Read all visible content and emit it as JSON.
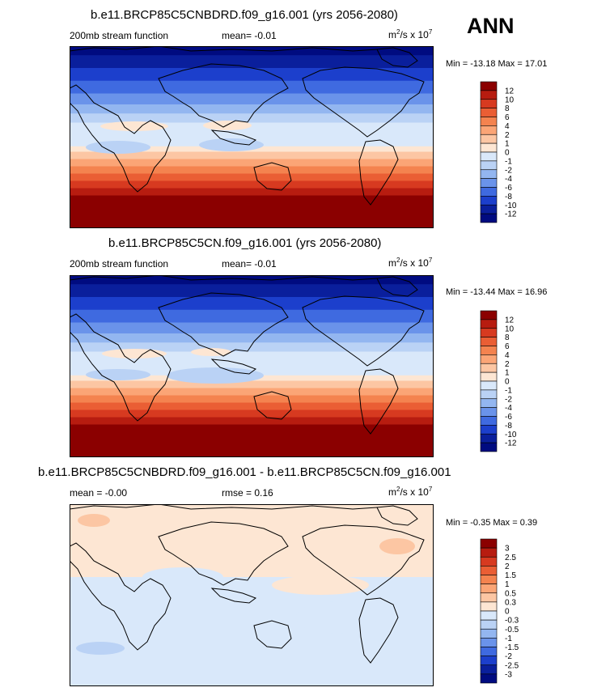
{
  "ann_label": "ANN",
  "panels": [
    {
      "title": "b.e11.BRCP85C5CNBDRD.f09_g16.001 (yrs 2056-2080)",
      "left_label": "200mb stream function",
      "mean_text": "mean=  -0.01",
      "units_base": "m",
      "units_mid": "/s x 10",
      "units_sup1": "2",
      "units_sup2": "7",
      "minmax": "Min = -13.18 Max =  17.01"
    },
    {
      "title": "b.e11.BRCP85C5CN.f09_g16.001 (yrs 2056-2080)",
      "left_label": "200mb stream function",
      "mean_text": "mean=  -0.01",
      "units_base": "m",
      "units_mid": "/s x 10",
      "units_sup1": "2",
      "units_sup2": "7",
      "minmax": "Min = -13.44 Max =  16.96"
    },
    {
      "title": "b.e11.BRCP85C5CNBDRD.f09_g16.001 - b.e11.BRCP85C5CN.f09_g16.001",
      "left_label": "mean =  -0.00",
      "mean_text": "rmse =   0.16",
      "units_base": "m",
      "units_mid": "/s x 10",
      "units_sup1": "2",
      "units_sup2": "7",
      "minmax": "Min = -0.35 Max =   0.39"
    }
  ],
  "chart_data": [
    {
      "type": "heatmap",
      "title": "b.e11.BRCP85C5CNBDRD.f09_g16.001 (yrs 2056-2080)",
      "variable": "200mb stream function",
      "units": "m2/s x 10^7",
      "mean": -0.01,
      "min": -13.18,
      "max": 17.01,
      "colorbar_levels": [
        "12",
        "10",
        "8",
        "6",
        "4",
        "2",
        "1",
        "0",
        "-1",
        "-2",
        "-4",
        "-6",
        "-8",
        "-10",
        "-12"
      ],
      "colorbar_colors": [
        "#8b0000",
        "#b71c10",
        "#d73a20",
        "#ea5e34",
        "#f4834f",
        "#fba576",
        "#fcc6a3",
        "#fde6d3",
        "#d9e8fa",
        "#bad2f5",
        "#93b6f0",
        "#6a93ea",
        "#3f6ae0",
        "#1c3fcc",
        "#0a1f9c",
        "#000b80"
      ],
      "latitude_profile_note": "negative values north, positive south"
    },
    {
      "type": "heatmap",
      "title": "b.e11.BRCP85C5CN.f09_g16.001 (yrs 2056-2080)",
      "variable": "200mb stream function",
      "units": "m2/s x 10^7",
      "mean": -0.01,
      "min": -13.44,
      "max": 16.96,
      "colorbar_levels": [
        "12",
        "10",
        "8",
        "6",
        "4",
        "2",
        "1",
        "0",
        "-1",
        "-2",
        "-4",
        "-6",
        "-8",
        "-10",
        "-12"
      ],
      "colorbar_colors": [
        "#8b0000",
        "#b71c10",
        "#d73a20",
        "#ea5e34",
        "#f4834f",
        "#fba576",
        "#fcc6a3",
        "#fde6d3",
        "#d9e8fa",
        "#bad2f5",
        "#93b6f0",
        "#6a93ea",
        "#3f6ae0",
        "#1c3fcc",
        "#0a1f9c",
        "#000b80"
      ]
    },
    {
      "type": "heatmap",
      "title": "b.e11.BRCP85C5CNBDRD.f09_g16.001 - b.e11.BRCP85C5CN.f09_g16.001",
      "units": "m2/s x 10^7",
      "mean": -0.0,
      "rmse": 0.16,
      "min": -0.35,
      "max": 0.39,
      "colorbar_levels": [
        "3",
        "2.5",
        "2",
        "1.5",
        "1",
        "0.5",
        "0.3",
        "0",
        "-0.3",
        "-0.5",
        "-1",
        "-1.5",
        "-2",
        "-2.5",
        "-3"
      ],
      "colorbar_colors": [
        "#8b0000",
        "#b71c10",
        "#d73a20",
        "#ea5e34",
        "#f4834f",
        "#fba576",
        "#fcc6a3",
        "#fde6d3",
        "#d9e8fa",
        "#bad2f5",
        "#93b6f0",
        "#6a93ea",
        "#3f6ae0",
        "#1c3fcc",
        "#0a1f9c",
        "#000b80"
      ]
    }
  ]
}
